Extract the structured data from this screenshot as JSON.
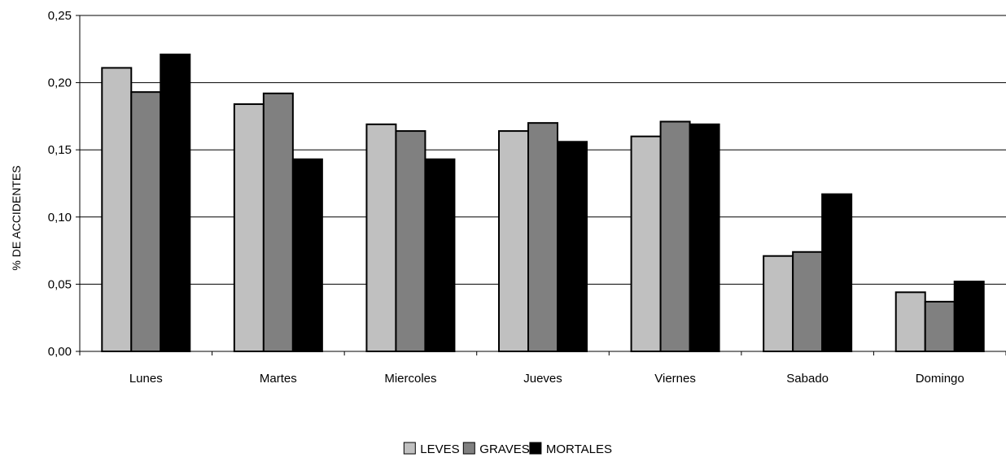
{
  "chart_data": {
    "type": "bar",
    "title": "",
    "xlabel": "",
    "ylabel": "% DE ACCIDENTES",
    "ylim": [
      0,
      0.25
    ],
    "yticks": [
      "0,00",
      "0,05",
      "0,10",
      "0,15",
      "0,20",
      "0,25"
    ],
    "grid": true,
    "legend_position": "bottom-center",
    "categories": [
      "Lunes",
      "Martes",
      "Miercoles",
      "Jueves",
      "Viernes",
      "Sabado",
      "Domingo"
    ],
    "series": [
      {
        "name": "LEVES",
        "color": "#c0c0c0",
        "values": [
          0.211,
          0.184,
          0.169,
          0.164,
          0.16,
          0.071,
          0.044
        ]
      },
      {
        "name": "GRAVES",
        "color": "#808080",
        "values": [
          0.193,
          0.192,
          0.164,
          0.17,
          0.171,
          0.074,
          0.037
        ]
      },
      {
        "name": "MORTALES",
        "color": "#000000",
        "values": [
          0.221,
          0.143,
          0.143,
          0.156,
          0.169,
          0.117,
          0.052
        ]
      }
    ]
  }
}
